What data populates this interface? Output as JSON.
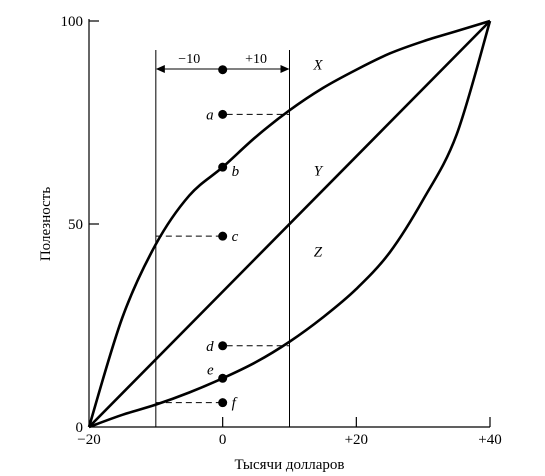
{
  "chart_data": {
    "type": "line",
    "title": "",
    "xlabel": "Тысячи долларов",
    "ylabel": "Полезность",
    "xlim": [
      -20,
      40
    ],
    "ylim": [
      0,
      100
    ],
    "xticks": [
      {
        "value": -20,
        "label": "−20"
      },
      {
        "value": 0,
        "label": "0"
      },
      {
        "value": 20,
        "label": "+20"
      },
      {
        "value": 40,
        "label": "+40"
      }
    ],
    "yticks": [
      {
        "value": 0,
        "label": "0"
      },
      {
        "value": 50,
        "label": "50"
      },
      {
        "value": 100,
        "label": "100"
      }
    ],
    "grid": false,
    "series": [
      {
        "name": "X",
        "x": [
          -20,
          -15,
          -10,
          -5,
          0,
          5,
          10,
          15,
          20,
          25,
          30,
          35,
          40
        ],
        "y": [
          0,
          27,
          45,
          57,
          64,
          71.5,
          78,
          83.5,
          88,
          92,
          95,
          97.5,
          100
        ]
      },
      {
        "name": "Y",
        "x": [
          -20,
          40
        ],
        "y": [
          0,
          100
        ]
      },
      {
        "name": "Z",
        "x": [
          -20,
          -15,
          -10,
          -5,
          0,
          5,
          10,
          15,
          20,
          25,
          30,
          35,
          40
        ],
        "y": [
          0,
          3,
          5.5,
          8.5,
          12,
          16,
          21,
          27,
          34,
          43,
          56,
          72,
          100
        ]
      }
    ],
    "markers": [
      {
        "label": "",
        "x": 0,
        "y": 88
      },
      {
        "label": "a",
        "x": 0,
        "y": 77
      },
      {
        "label": "b",
        "x": 0,
        "y": 64
      },
      {
        "label": "c",
        "x": 0,
        "y": 47
      },
      {
        "label": "d",
        "x": 0,
        "y": 20
      },
      {
        "label": "e",
        "x": 0,
        "y": 12
      },
      {
        "label": "f",
        "x": 0,
        "y": 6
      }
    ],
    "reference_x": [
      -10,
      10
    ],
    "range_labels": {
      "left": "−10",
      "right": "+10"
    }
  }
}
